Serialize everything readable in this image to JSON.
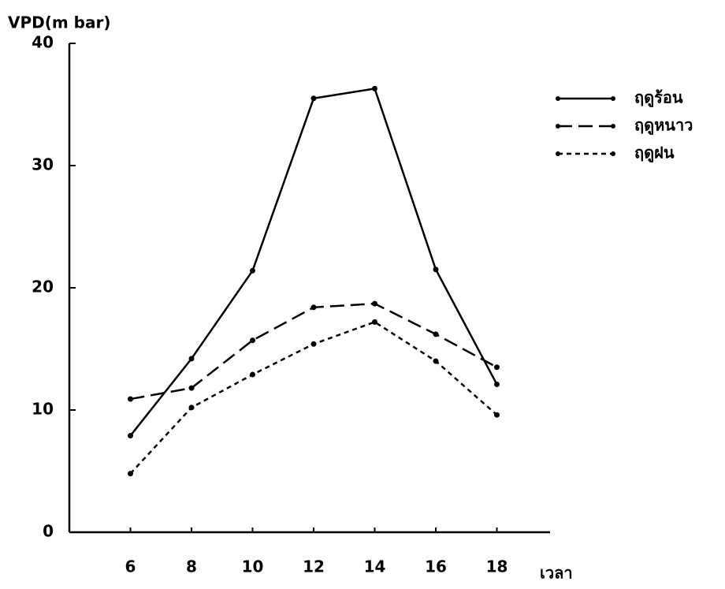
{
  "chart_data": {
    "type": "line",
    "y_label": "VPD(m bar)",
    "x_label": "เวลา",
    "x": [
      6,
      8,
      10,
      12,
      14,
      16,
      18
    ],
    "xlim": [
      4,
      20
    ],
    "xticks": [
      6,
      8,
      10,
      12,
      14,
      16,
      18
    ],
    "ylim": [
      0,
      40
    ],
    "yticks": [
      0,
      10,
      20,
      30,
      40
    ],
    "grid": false,
    "legend": "top-right",
    "series": [
      {
        "name": "ฤดูร้อน",
        "color": "#000000",
        "dash": "solid",
        "values": [
          7.9,
          14.2,
          21.4,
          35.5,
          36.3,
          21.5,
          12.1
        ]
      },
      {
        "name": "ฤดูหนาว",
        "color": "#000000",
        "dash": "long",
        "values": [
          10.9,
          11.8,
          15.7,
          18.4,
          18.7,
          16.2,
          13.5
        ]
      },
      {
        "name": "ฤดูฝน",
        "color": "#000000",
        "dash": "short",
        "values": [
          4.8,
          10.2,
          12.9,
          15.4,
          17.2,
          14.0,
          9.6
        ]
      }
    ]
  }
}
